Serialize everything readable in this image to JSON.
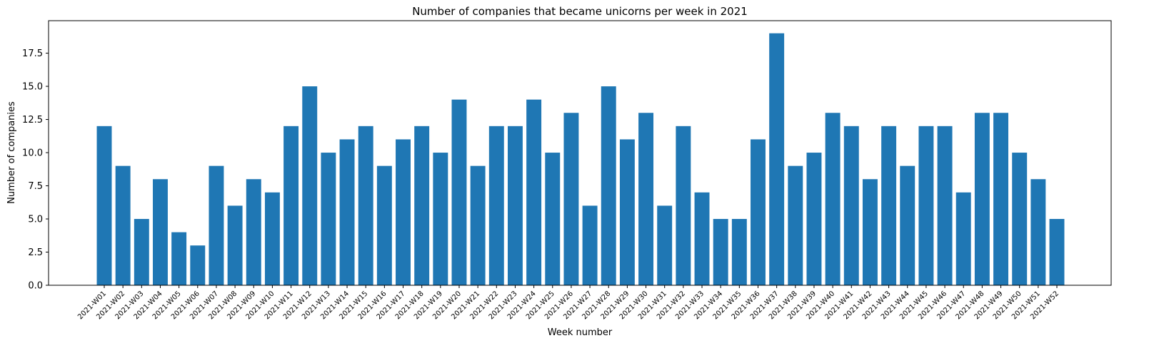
{
  "chart_data": {
    "type": "bar",
    "title": "Number of companies that became unicorns per week in 2021",
    "xlabel": "Week number",
    "ylabel": "Number of companies",
    "categories": [
      "2021-W01",
      "2021-W02",
      "2021-W03",
      "2021-W04",
      "2021-W05",
      "2021-W06",
      "2021-W07",
      "2021-W08",
      "2021-W09",
      "2021-W10",
      "2021-W11",
      "2021-W12",
      "2021-W13",
      "2021-W14",
      "2021-W15",
      "2021-W16",
      "2021-W17",
      "2021-W18",
      "2021-W19",
      "2021-W20",
      "2021-W21",
      "2021-W22",
      "2021-W23",
      "2021-W24",
      "2021-W25",
      "2021-W26",
      "2021-W27",
      "2021-W28",
      "2021-W29",
      "2021-W30",
      "2021-W31",
      "2021-W32",
      "2021-W33",
      "2021-W34",
      "2021-W35",
      "2021-W36",
      "2021-W37",
      "2021-W38",
      "2021-W39",
      "2021-W40",
      "2021-W41",
      "2021-W42",
      "2021-W43",
      "2021-W44",
      "2021-W45",
      "2021-W46",
      "2021-W47",
      "2021-W48",
      "2021-W49",
      "2021-W50",
      "2021-W51",
      "2021-W52"
    ],
    "values": [
      12,
      9,
      5,
      8,
      4,
      3,
      9,
      6,
      8,
      7,
      12,
      15,
      10,
      11,
      12,
      9,
      11,
      12,
      10,
      14,
      9,
      12,
      12,
      14,
      10,
      13,
      6,
      15,
      11,
      13,
      6,
      12,
      7,
      5,
      5,
      11,
      19,
      9,
      10,
      13,
      12,
      8,
      12,
      9,
      12,
      12,
      7,
      13,
      13,
      10,
      8,
      5
    ],
    "ylim": [
      0,
      19.95
    ],
    "yticks": [
      0.0,
      2.5,
      5.0,
      7.5,
      10.0,
      12.5,
      15.0,
      17.5
    ],
    "ytick_labels": [
      "0.0",
      "2.5",
      "5.0",
      "7.5",
      "10.0",
      "12.5",
      "15.0",
      "17.5"
    ],
    "bar_color": "#1f77b4",
    "grid": false,
    "legend": "none"
  }
}
